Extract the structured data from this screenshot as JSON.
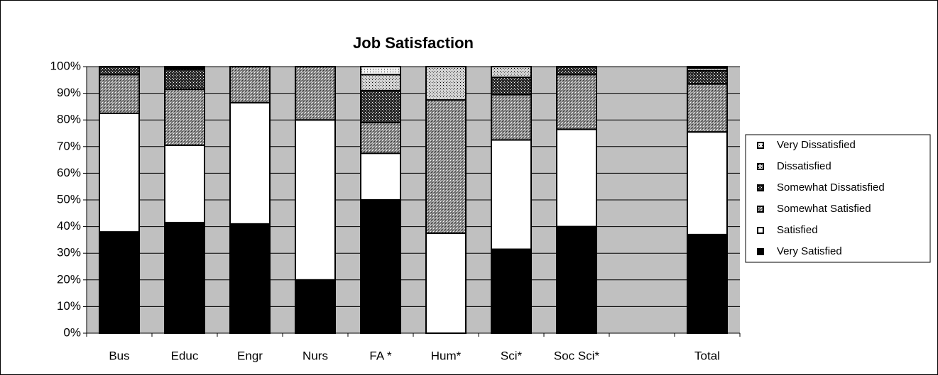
{
  "chart_data": {
    "type": "bar",
    "stacked": true,
    "title": "Job Satisfaction",
    "categories": [
      "Bus",
      "Educ",
      "Engr",
      "Nurs",
      "FA *",
      "Hum*",
      "Sci*",
      "Soc Sci*",
      null,
      "Total"
    ],
    "series": [
      {
        "name": "Very Satisfied",
        "color": "#000000",
        "values": [
          38,
          41.5,
          41,
          20,
          50,
          0,
          31.5,
          40,
          null,
          37
        ]
      },
      {
        "name": "Satisfied",
        "color": "#ffffff",
        "values": [
          44.5,
          29,
          45.5,
          60,
          17.5,
          37.5,
          41,
          36.5,
          null,
          38.5
        ]
      },
      {
        "name": "Somewhat Satisfied",
        "color": "#8c8c8c",
        "values": [
          14.5,
          21,
          13.5,
          20,
          11.5,
          50,
          17,
          20.5,
          null,
          18
        ]
      },
      {
        "name": "Somewhat Dissatisfied",
        "color": "#2a2a2a",
        "values": [
          3,
          7.5,
          0,
          0,
          12,
          0,
          6.5,
          3,
          null,
          5
        ]
      },
      {
        "name": "Dissatisfied",
        "color": "#d4d4d4",
        "values": [
          0,
          0.5,
          0,
          0,
          6,
          12.5,
          4,
          0,
          null,
          1
        ]
      },
      {
        "name": "Very Dissatisfied",
        "color": "#f2f2f2",
        "values": [
          0,
          0.5,
          0,
          0,
          3,
          0,
          0,
          0,
          null,
          0.5
        ]
      }
    ],
    "ylim": [
      0,
      100
    ],
    "yticks": [
      {
        "value": 0,
        "label": "0%"
      },
      {
        "value": 10,
        "label": "10%"
      },
      {
        "value": 20,
        "label": "20%"
      },
      {
        "value": 30,
        "label": "30%"
      },
      {
        "value": 40,
        "label": "40%"
      },
      {
        "value": 50,
        "label": "50%"
      },
      {
        "value": 60,
        "label": "60%"
      },
      {
        "value": 70,
        "label": "70%"
      },
      {
        "value": 80,
        "label": "80%"
      },
      {
        "value": 90,
        "label": "90%"
      },
      {
        "value": 100,
        "label": "100%"
      }
    ],
    "grid": true,
    "legend": "right"
  }
}
